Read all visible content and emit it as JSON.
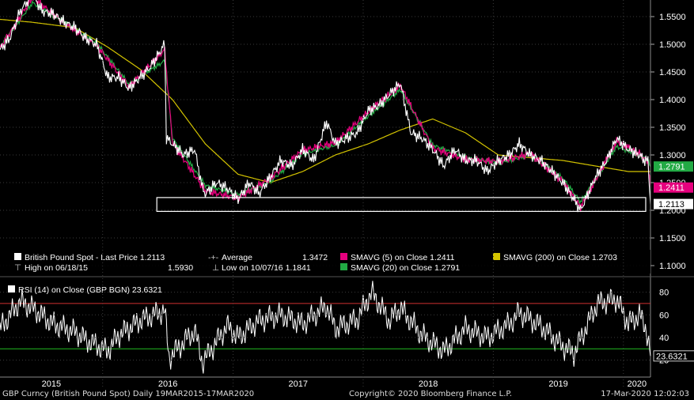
{
  "footer": {
    "left": "GBP Curncy (British Pound Spot)  Daily 19MAR2015-17MAR2020",
    "center": "Copyright© 2020 Bloomberg Finance L.P.",
    "right": "17-Mar-2020 12:02:03"
  },
  "colors": {
    "background": "#000000",
    "price": "#ffffff",
    "sma5": "#e6007e",
    "sma20": "#22aa44",
    "sma200": "#d4c400",
    "rsi_upper": "#d03030",
    "rsi_lower": "#22bb22",
    "grid": "#3a3a3a"
  },
  "chart_data": [
    {
      "type": "line",
      "title": "",
      "y_axis_side": "right",
      "ylim": [
        1.08,
        1.58
      ],
      "y_ticks": [
        "1.5500",
        "1.5000",
        "1.4500",
        "1.4000",
        "1.3500",
        "1.3000",
        "1.2500",
        "1.2000",
        "1.1500",
        "1.1000"
      ],
      "x_labels": [
        "2015",
        "2016",
        "2017",
        "2018",
        "2019",
        "2020"
      ],
      "x_range": [
        "2015-03-19",
        "2020-03-17"
      ],
      "legend": {
        "row1": {
          "price": "British Pound Spot - Last Price 1.2113",
          "average_label": "Average",
          "average_value": "1.3472",
          "sma5": "SMAVG (5)  on Close  1.2411",
          "sma200": "SMAVG (200)  on Close 1.2703"
        },
        "row2": {
          "high": "High on 06/18/15",
          "high_value": "1.5930",
          "low": "Low on 10/07/16  1.1841",
          "sma20": "SMAVG (20)  on Close  1.2791"
        }
      },
      "value_tags": [
        {
          "label": "1.2791",
          "value": 1.2791,
          "color": "#22aa44"
        },
        {
          "label": "1.2411",
          "value": 1.2411,
          "color": "#e6007e"
        },
        {
          "label": "1.2113",
          "value": 1.2113,
          "color": "#ffffff"
        }
      ],
      "box_annotation": {
        "ymin": 1.198,
        "ymax": 1.223,
        "x_from": "2016-06-01",
        "x_to": "2020-03-17"
      },
      "series": [
        {
          "name": "British Pound Spot - Last Price",
          "x": [
            "2015-03-19",
            "2015-04-15",
            "2015-05-15",
            "2015-06-18",
            "2015-07-15",
            "2015-08-15",
            "2015-09-15",
            "2015-10-15",
            "2015-11-15",
            "2015-12-15",
            "2016-01-15",
            "2016-02-15",
            "2016-03-15",
            "2016-04-15",
            "2016-05-15",
            "2016-06-23",
            "2016-06-28",
            "2016-07-15",
            "2016-08-15",
            "2016-09-15",
            "2016-10-07",
            "2016-10-15",
            "2016-11-15",
            "2016-12-15",
            "2017-01-15",
            "2017-02-15",
            "2017-03-15",
            "2017-04-15",
            "2017-05-15",
            "2017-06-15",
            "2017-07-15",
            "2017-08-15",
            "2017-09-20",
            "2017-10-15",
            "2017-11-15",
            "2017-12-15",
            "2018-01-15",
            "2018-02-15",
            "2018-04-15",
            "2018-05-15",
            "2018-06-15",
            "2018-07-15",
            "2018-08-15",
            "2018-09-15",
            "2018-10-15",
            "2018-11-15",
            "2018-12-15",
            "2019-01-15",
            "2019-02-15",
            "2019-03-15",
            "2019-04-15",
            "2019-05-15",
            "2019-06-15",
            "2019-07-15",
            "2019-08-15",
            "2019-09-03",
            "2019-10-15",
            "2019-11-15",
            "2019-12-13",
            "2020-01-15",
            "2020-02-15",
            "2020-03-01",
            "2020-03-10",
            "2020-03-17"
          ],
          "values": [
            1.49,
            1.51,
            1.56,
            1.59,
            1.56,
            1.555,
            1.54,
            1.53,
            1.51,
            1.5,
            1.44,
            1.44,
            1.42,
            1.44,
            1.46,
            1.5,
            1.33,
            1.32,
            1.3,
            1.31,
            1.24,
            1.23,
            1.25,
            1.24,
            1.22,
            1.25,
            1.23,
            1.26,
            1.29,
            1.28,
            1.31,
            1.29,
            1.36,
            1.32,
            1.33,
            1.34,
            1.38,
            1.39,
            1.43,
            1.34,
            1.33,
            1.31,
            1.28,
            1.31,
            1.29,
            1.29,
            1.27,
            1.29,
            1.3,
            1.32,
            1.3,
            1.29,
            1.27,
            1.25,
            1.22,
            1.2,
            1.26,
            1.29,
            1.33,
            1.31,
            1.3,
            1.29,
            1.29,
            1.211
          ]
        },
        {
          "name": "SMAVG (5)  on Close",
          "x": [
            "2015-03-19",
            "2015-06-18",
            "2015-09-15",
            "2015-12-15",
            "2016-03-15",
            "2016-06-23",
            "2016-07-15",
            "2016-10-15",
            "2017-01-15",
            "2017-04-15",
            "2017-07-15",
            "2017-10-15",
            "2018-01-15",
            "2018-04-15",
            "2018-07-15",
            "2018-10-15",
            "2019-01-15",
            "2019-04-15",
            "2019-07-15",
            "2019-09-03",
            "2019-12-13",
            "2020-02-15",
            "2020-03-10",
            "2020-03-17"
          ],
          "values": [
            1.492,
            1.585,
            1.538,
            1.498,
            1.423,
            1.49,
            1.322,
            1.235,
            1.222,
            1.258,
            1.308,
            1.322,
            1.378,
            1.426,
            1.312,
            1.292,
            1.288,
            1.302,
            1.252,
            1.205,
            1.325,
            1.302,
            1.288,
            1.241
          ]
        },
        {
          "name": "SMAVG (20)  on Close",
          "x": [
            "2015-03-19",
            "2015-06-18",
            "2015-09-15",
            "2015-12-15",
            "2016-03-15",
            "2016-06-23",
            "2016-07-15",
            "2016-10-15",
            "2017-01-15",
            "2017-04-15",
            "2017-07-15",
            "2017-10-15",
            "2018-01-15",
            "2018-04-15",
            "2018-07-15",
            "2018-10-15",
            "2019-01-15",
            "2019-04-15",
            "2019-07-15",
            "2019-09-03",
            "2019-12-13",
            "2020-02-15",
            "2020-03-10",
            "2020-03-17"
          ],
          "values": [
            1.495,
            1.575,
            1.54,
            1.502,
            1.428,
            1.47,
            1.33,
            1.245,
            1.228,
            1.252,
            1.302,
            1.318,
            1.37,
            1.418,
            1.318,
            1.295,
            1.285,
            1.3,
            1.258,
            1.215,
            1.315,
            1.3,
            1.29,
            1.279
          ]
        },
        {
          "name": "SMAVG (200)  on Close",
          "x": [
            "2015-03-19",
            "2015-06-15",
            "2015-10-15",
            "2016-01-15",
            "2016-04-15",
            "2016-07-15",
            "2016-10-15",
            "2017-01-15",
            "2017-04-15",
            "2017-07-15",
            "2017-10-15",
            "2018-01-15",
            "2018-04-15",
            "2018-07-15",
            "2018-10-15",
            "2019-01-15",
            "2019-04-15",
            "2019-07-15",
            "2019-10-15",
            "2020-01-15",
            "2020-03-17"
          ],
          "values": [
            1.545,
            1.54,
            1.53,
            1.495,
            1.455,
            1.4,
            1.32,
            1.265,
            1.25,
            1.27,
            1.3,
            1.32,
            1.345,
            1.365,
            1.34,
            1.3,
            1.295,
            1.29,
            1.28,
            1.27,
            1.27
          ]
        }
      ]
    },
    {
      "type": "line",
      "title": "RSI (14)  on Close (GBP BGN) 23.6321",
      "y_axis_side": "right",
      "ylim": [
        5,
        93
      ],
      "y_ticks": [
        "80",
        "60",
        "40",
        "20"
      ],
      "reference_lines": [
        {
          "value": 70,
          "color": "#d03030"
        },
        {
          "value": 30,
          "color": "#22bb22"
        }
      ],
      "value_tag": {
        "label": "23.6321",
        "value": 23.6321
      },
      "series": [
        {
          "name": "RSI (14)  on Close (GBP BGN)",
          "x": [
            "2015-03-19",
            "2015-05-15",
            "2015-06-18",
            "2015-08-15",
            "2015-10-15",
            "2015-11-15",
            "2016-01-15",
            "2016-02-15",
            "2016-04-15",
            "2016-06-23",
            "2016-07-05",
            "2016-09-15",
            "2016-10-07",
            "2016-12-15",
            "2017-01-15",
            "2017-03-15",
            "2017-05-15",
            "2017-07-15",
            "2017-09-20",
            "2017-10-15",
            "2017-12-15",
            "2018-01-25",
            "2018-03-15",
            "2018-04-15",
            "2018-06-15",
            "2018-08-15",
            "2018-10-15",
            "2018-12-15",
            "2019-02-15",
            "2019-03-15",
            "2019-05-15",
            "2019-07-15",
            "2019-08-15",
            "2019-10-20",
            "2019-12-13",
            "2020-01-15",
            "2020-02-15",
            "2020-03-05",
            "2020-03-17"
          ],
          "values": [
            48,
            72,
            66,
            52,
            45,
            38,
            28,
            42,
            55,
            64,
            22,
            46,
            18,
            50,
            40,
            55,
            60,
            52,
            68,
            48,
            56,
            80,
            55,
            66,
            42,
            28,
            48,
            40,
            52,
            62,
            50,
            32,
            26,
            70,
            74,
            52,
            60,
            48,
            23.6321
          ]
        }
      ]
    }
  ]
}
